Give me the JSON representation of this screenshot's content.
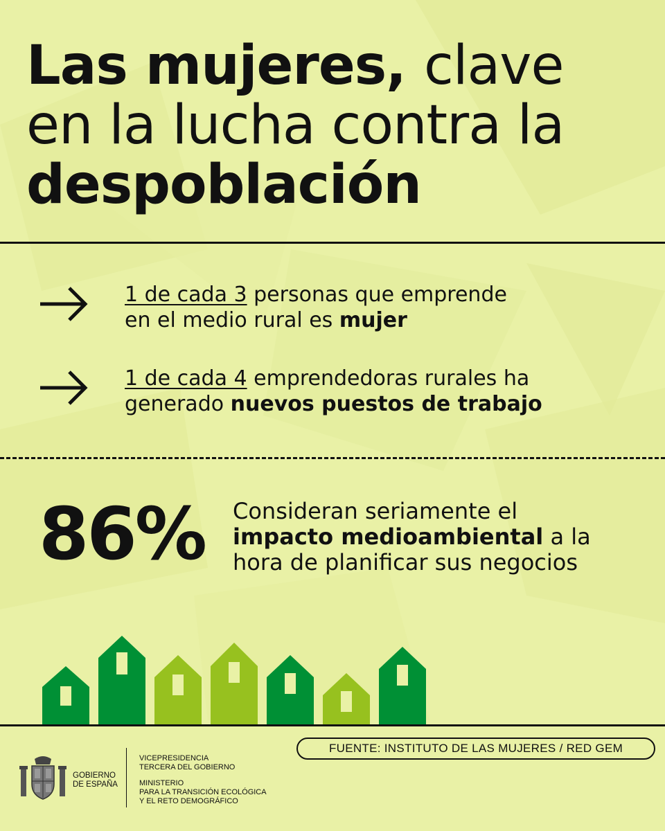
{
  "title": {
    "line1_bold": "Las mujeres,",
    "line1_light": "clave",
    "line2": "en la lucha contra la",
    "line3_bold": "despoblación"
  },
  "stats": [
    {
      "highlight": "1 de cada 3",
      "text_a": "personas que emprende",
      "text_b": "en el medio rural es",
      "bold": "mujer"
    },
    {
      "highlight": "1 de cada 4",
      "text_a": "emprendedoras rurales ha",
      "text_b": "generado",
      "bold": "nuevos puestos de trabajo"
    }
  ],
  "percent": {
    "value": "86%",
    "line1": "Consideran seriamente el",
    "bold": "impacto medioambiental",
    "after_bold": "a la",
    "line3": "hora de planificar sus negocios"
  },
  "source": "FUENTE: INSTITUTO DE LAS MUJERES / RED GEM",
  "footer": {
    "gov_line1": "GOBIERNO",
    "gov_line2": "DE ESPAÑA",
    "vp_line1": "VICEPRESIDENCIA",
    "vp_line2": "TERCERA DEL GOBIERNO",
    "min_line1": "MINISTERIO",
    "min_line2": "PARA LA TRANSICIÓN ECOLÓGICA",
    "min_line3": "Y EL RETO DEMOGRÁFICO"
  },
  "colors": {
    "background": "#e9f1a6",
    "house_dark": "#009035",
    "house_light": "#97c11f",
    "text": "#111111"
  },
  "icons": [
    "arrow-right-icon",
    "house-icon",
    "coat-of-arms-icon"
  ]
}
